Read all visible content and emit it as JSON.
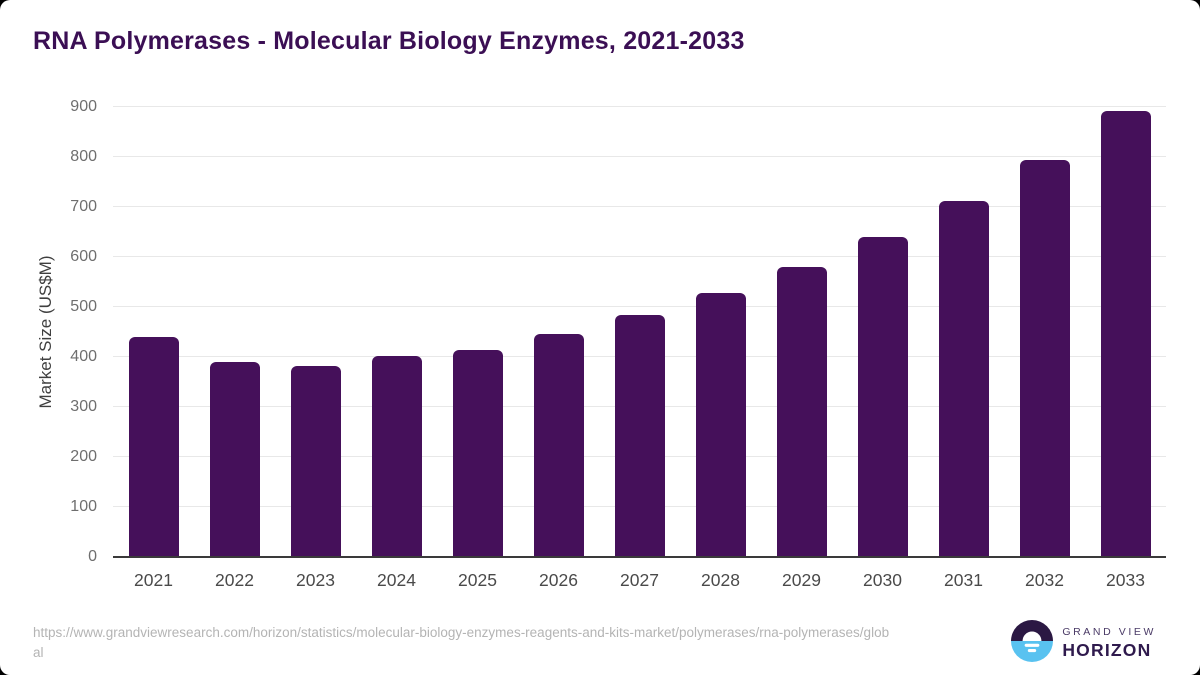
{
  "page": {
    "background_color": "#000000",
    "card_color": "#FFFFFF",
    "title_color": "#3B0F54"
  },
  "chart_data": {
    "type": "bar",
    "title": "RNA Polymerases - Molecular Biology Enzymes, 2021-2033",
    "categories": [
      "2021",
      "2022",
      "2023",
      "2024",
      "2025",
      "2026",
      "2027",
      "2028",
      "2029",
      "2030",
      "2031",
      "2032",
      "2033"
    ],
    "values": [
      440,
      390,
      383,
      403,
      415,
      447,
      484,
      528,
      580,
      640,
      712,
      795,
      892
    ],
    "xlabel": "",
    "ylabel": "Market Size (US$M)",
    "ylim": [
      0,
      900
    ],
    "ytick_step": 100,
    "grid": true,
    "legend_position": "none",
    "bar_color": "#45105A",
    "gridline_color": "#E8E8E8",
    "axis_line_color": "#3A3A3A",
    "tick_label_color": "#6E6E6E",
    "x_label_color": "#4A4A4A"
  },
  "footer": {
    "source_url": "https://www.grandviewresearch.com/horizon/statistics/molecular-biology-enzymes-reagents-and-kits-market/polymerases/rna-polymerases/global",
    "logo": {
      "brand_line1": "GRAND VIEW",
      "brand_line2": "HORIZON",
      "icon": "sun-horizon-icon",
      "circle_top_color": "#2B1843",
      "circle_bottom_color": "#59C2F0"
    }
  }
}
